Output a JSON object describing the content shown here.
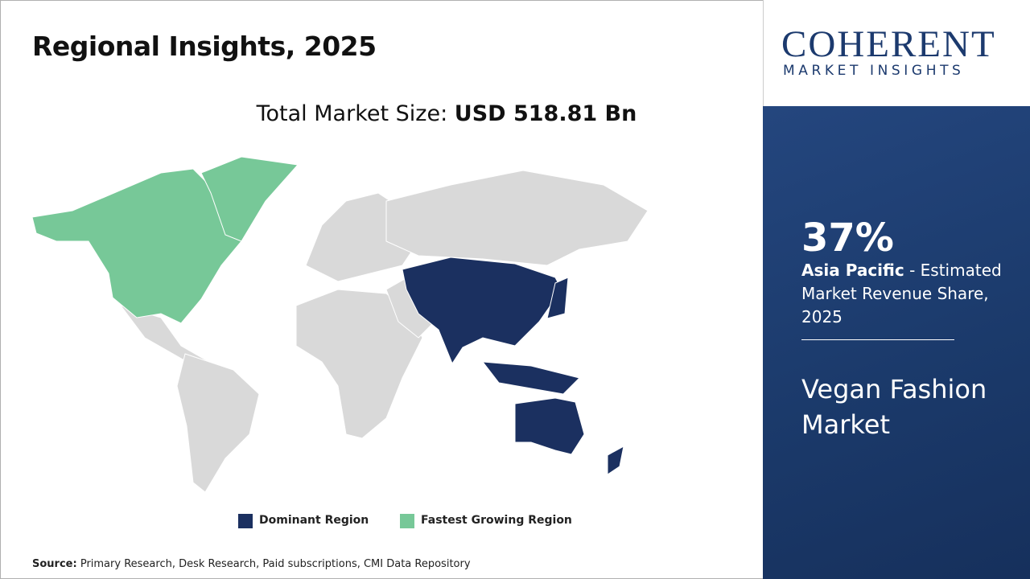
{
  "header": {
    "title": "Regional Insights, 2025"
  },
  "market_size": {
    "label": "Total Market Size:",
    "value": "USD 518.81 Bn"
  },
  "logo": {
    "name": "COHERENT",
    "tagline": "MARKET INSIGHTS"
  },
  "highlight": {
    "share": "37%",
    "region": "Asia Pacific",
    "description": "- Estimated Market Revenue Share, 2025",
    "market": "Vegan Fashion Market"
  },
  "legend": {
    "dominant": "Dominant Region",
    "fastest": "Fastest Growing Region"
  },
  "source": {
    "label": "Source:",
    "text": "Primary Research, Desk Research, Paid subscriptions, CMI Data Repository"
  }
}
